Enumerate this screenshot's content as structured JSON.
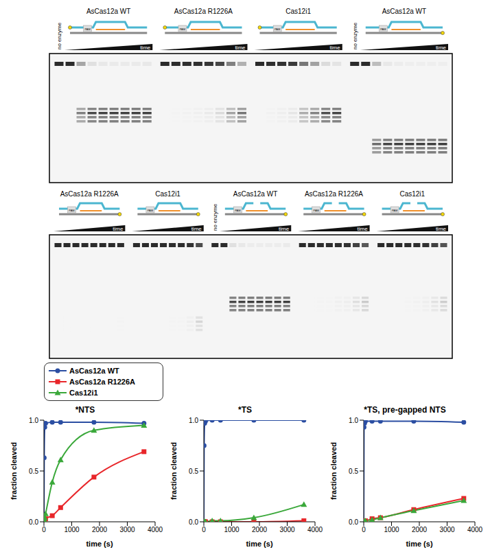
{
  "gel_labels": {
    "no_enzyme": "no enzyme",
    "time": "time",
    "pam": "PAM"
  },
  "chart_data": [
    {
      "type": "line",
      "title": "*NTS",
      "x_label": "time (s)",
      "y_label": "fraction cleaved",
      "x": [
        0,
        10,
        30,
        60,
        300,
        600,
        1800,
        3600
      ],
      "xlim": [
        0,
        4000
      ],
      "xticks": [
        0,
        1000,
        2000,
        3000,
        4000
      ],
      "ylim": [
        0,
        1
      ],
      "yticks": [
        {
          "value": 0,
          "label": "0.0"
        },
        {
          "value": 0.5,
          "label": "0.5"
        },
        {
          "value": 1,
          "label": "1.0"
        }
      ],
      "legend": "top",
      "grid": false,
      "series": [
        {
          "name": "AsCas12a WT",
          "color": "#2b4ea2",
          "marker": "circle",
          "line_style": "solid",
          "values": [
            0,
            0.63,
            0.93,
            0.97,
            0.98,
            0.98,
            0.98,
            0.97
          ]
        },
        {
          "name": "AsCas12a R1226A",
          "color": "#e8262a",
          "marker": "square",
          "line_style": "solid",
          "values": [
            0,
            0.01,
            0.02,
            0.03,
            0.06,
            0.14,
            0.44,
            0.69
          ]
        },
        {
          "name": "Cas12i1",
          "color": "#3aa83a",
          "marker": "triangle",
          "line_style": "solid",
          "values": [
            0,
            0.02,
            0.04,
            0.08,
            0.39,
            0.61,
            0.9,
            0.95
          ]
        }
      ]
    },
    {
      "type": "line",
      "title": "*TS",
      "x_label": "time (s)",
      "y_label": "fraction cleaved",
      "x": [
        0,
        10,
        30,
        60,
        300,
        600,
        1800,
        3600
      ],
      "xlim": [
        0,
        4000
      ],
      "xticks": [
        0,
        1000,
        2000,
        3000,
        4000
      ],
      "ylim": [
        0,
        1
      ],
      "yticks": [
        {
          "value": 0,
          "label": "0.0"
        },
        {
          "value": 0.5,
          "label": "0.5"
        },
        {
          "value": 1,
          "label": "1.0"
        }
      ],
      "grid": false,
      "series": [
        {
          "name": "AsCas12a WT",
          "color": "#2b4ea2",
          "marker": "circle",
          "line_style": "solid",
          "values": [
            0,
            0.75,
            0.97,
            0.99,
            1,
            1,
            1,
            1
          ]
        },
        {
          "name": "AsCas12a R1226A",
          "color": "#e8262a",
          "marker": "square",
          "line_style": "solid",
          "values": [
            0,
            0,
            0,
            0,
            0,
            0,
            0,
            0.01
          ]
        },
        {
          "name": "Cas12i1",
          "color": "#3aa83a",
          "marker": "triangle",
          "line_style": "solid",
          "values": [
            0,
            0,
            0,
            0,
            0.01,
            0.01,
            0.04,
            0.17
          ]
        }
      ]
    },
    {
      "type": "line",
      "title": "*TS, pre-gapped NTS",
      "x_label": "time (s)",
      "y_label": "fraction cleaved",
      "x": [
        0,
        10,
        30,
        60,
        300,
        600,
        1800,
        3600
      ],
      "xlim": [
        0,
        4000
      ],
      "xticks": [
        0,
        1000,
        2000,
        3000,
        4000
      ],
      "ylim": [
        0,
        1
      ],
      "yticks": [
        {
          "value": 0,
          "label": "0.0"
        },
        {
          "value": 0.5,
          "label": "0.5"
        },
        {
          "value": 1,
          "label": "1.0"
        }
      ],
      "grid": false,
      "series": [
        {
          "name": "AsCas12a WT",
          "color": "#2b4ea2",
          "marker": "circle",
          "line_style": "solid",
          "values": [
            0,
            0.93,
            0.97,
            0.99,
            0.99,
            0.99,
            0.99,
            0.98
          ]
        },
        {
          "name": "AsCas12a R1226A",
          "color": "#e8262a",
          "marker": "square",
          "line_style": "solid",
          "values": [
            0,
            0,
            0.01,
            0.01,
            0.03,
            0.04,
            0.12,
            0.23
          ]
        },
        {
          "name": "Cas12i1",
          "color": "#3aa83a",
          "marker": "triangle",
          "line_style": "solid",
          "values": [
            0,
            0,
            0,
            0.01,
            0.02,
            0.04,
            0.11,
            0.21
          ]
        }
      ]
    }
  ]
}
